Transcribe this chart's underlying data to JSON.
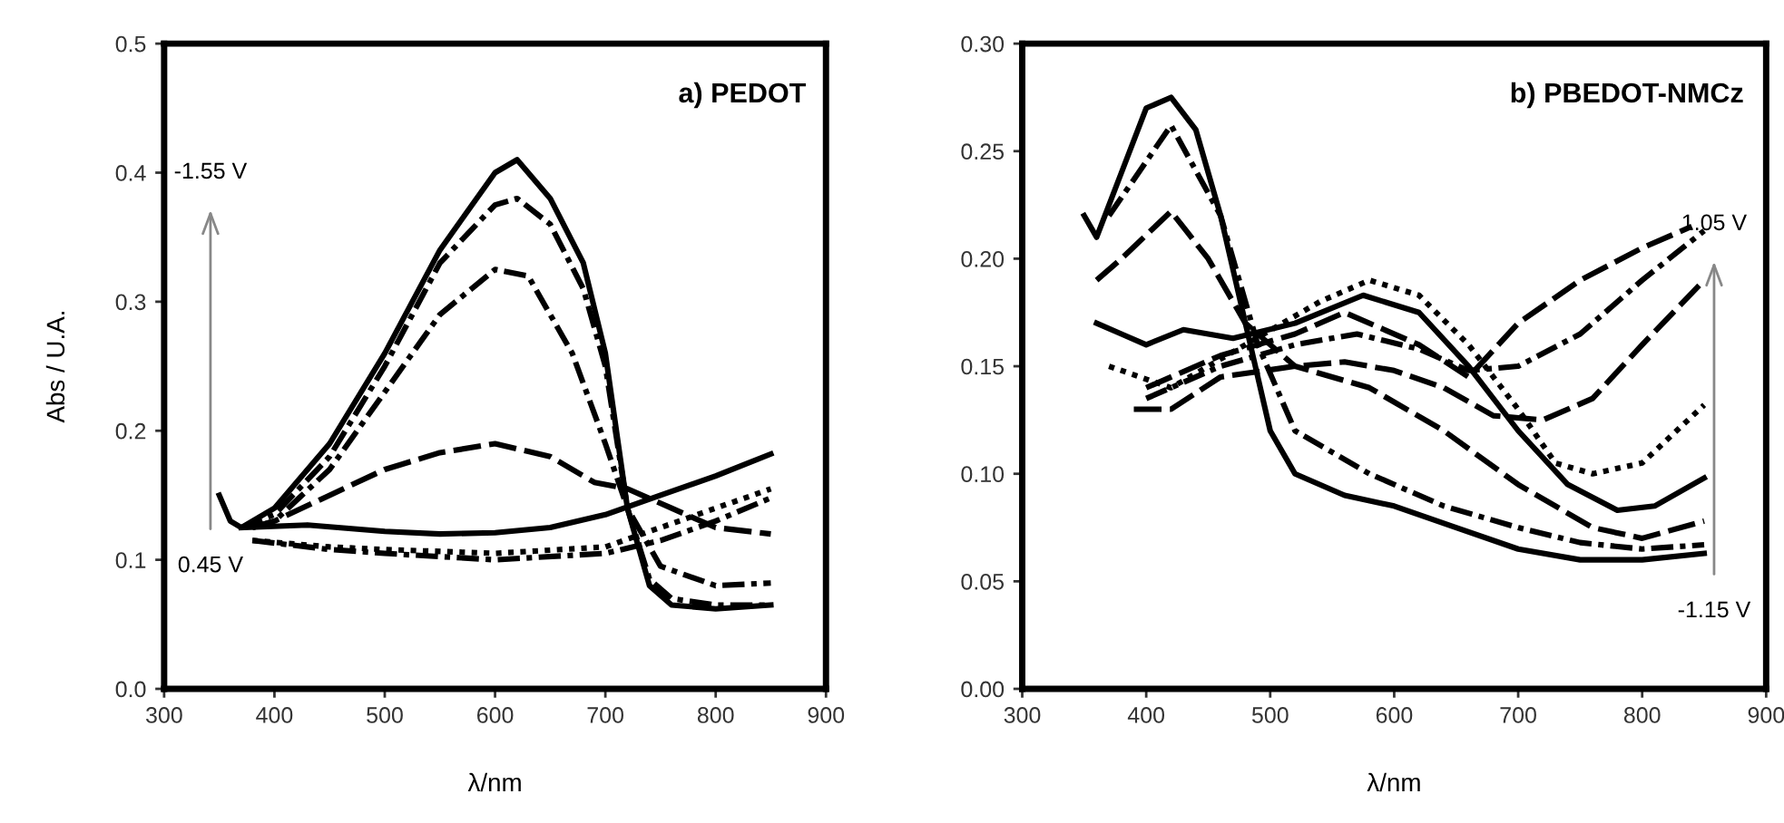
{
  "chart_data": [
    {
      "type": "line",
      "title": "a) PEDOT",
      "xlabel": "λ/nm",
      "ylabel": "Abs / U.A.",
      "xlim": [
        300,
        900
      ],
      "xticks": [
        300,
        400,
        500,
        600,
        700,
        800,
        900
      ],
      "ylim": [
        0,
        0.5
      ],
      "yticks": [
        {
          "value": 0,
          "label": "0.0"
        },
        0.1,
        0.2,
        0.3,
        0.4,
        0.5
      ],
      "grid": false,
      "legend": false,
      "marker": "none",
      "annotations": [
        "-1.55 V",
        "0.45 V"
      ],
      "series": [
        {
          "color": "#000000",
          "line_style": "solid",
          "x": [
            350,
            360,
            370,
            400,
            450,
            500,
            550,
            600,
            620,
            650,
            680,
            700,
            720,
            740,
            760,
            800,
            850
          ],
          "values": [
            0.15,
            0.13,
            0.125,
            0.14,
            0.19,
            0.26,
            0.34,
            0.4,
            0.41,
            0.38,
            0.33,
            0.26,
            0.14,
            0.08,
            0.065,
            0.062,
            0.065
          ]
        },
        {
          "color": "#000000",
          "line_style": "dashdot",
          "x": [
            370,
            400,
            450,
            500,
            550,
            600,
            620,
            650,
            680,
            700,
            720,
            740,
            760,
            800,
            850
          ],
          "values": [
            0.125,
            0.135,
            0.18,
            0.25,
            0.33,
            0.375,
            0.38,
            0.36,
            0.31,
            0.25,
            0.14,
            0.085,
            0.07,
            0.065,
            0.065
          ]
        },
        {
          "color": "#000000",
          "line_style": "dashdot",
          "x": [
            380,
            400,
            450,
            500,
            550,
            600,
            630,
            670,
            700,
            720,
            750,
            800,
            850
          ],
          "values": [
            0.125,
            0.13,
            0.17,
            0.23,
            0.29,
            0.325,
            0.32,
            0.26,
            0.19,
            0.14,
            0.095,
            0.08,
            0.082
          ]
        },
        {
          "color": "#000000",
          "line_style": "dashed",
          "x": [
            380,
            400,
            450,
            500,
            550,
            600,
            650,
            690,
            720,
            760,
            800,
            850
          ],
          "values": [
            0.125,
            0.13,
            0.15,
            0.17,
            0.183,
            0.19,
            0.18,
            0.16,
            0.155,
            0.14,
            0.125,
            0.12
          ]
        },
        {
          "color": "#000000",
          "line_style": "solid",
          "x": [
            370,
            430,
            500,
            550,
            600,
            650,
            700,
            750,
            800,
            850
          ],
          "values": [
            0.125,
            0.127,
            0.122,
            0.12,
            0.121,
            0.125,
            0.135,
            0.15,
            0.165,
            0.182
          ]
        },
        {
          "color": "#000000",
          "line_style": "dotted",
          "x": [
            380,
            450,
            500,
            600,
            700,
            750,
            800,
            850
          ],
          "values": [
            0.115,
            0.11,
            0.108,
            0.105,
            0.11,
            0.125,
            0.14,
            0.155
          ]
        },
        {
          "color": "#000000",
          "line_style": "dashdot",
          "x": [
            380,
            450,
            500,
            600,
            700,
            750,
            800,
            850
          ],
          "values": [
            0.115,
            0.108,
            0.105,
            0.1,
            0.105,
            0.115,
            0.13,
            0.148
          ]
        }
      ]
    },
    {
      "type": "line",
      "title": "b) PBEDOT-NMCz",
      "xlabel": "λ/nm",
      "xlim": [
        300,
        900
      ],
      "xticks": [
        300,
        400,
        500,
        600,
        700,
        800,
        900
      ],
      "ylim": [
        0,
        0.3
      ],
      "yticks": [
        {
          "value": 0,
          "label": "0.00"
        },
        {
          "value": 0.05,
          "label": "0.05"
        },
        {
          "value": 0.1,
          "label": "0.10"
        },
        {
          "value": 0.15,
          "label": "0.15"
        },
        {
          "value": 0.2,
          "label": "0.20"
        },
        {
          "value": 0.25,
          "label": "0.25"
        },
        {
          "value": 0.3,
          "label": "0.30"
        }
      ],
      "grid": false,
      "legend": false,
      "marker": "none",
      "annotations": [
        "1.05 V",
        "-1.15 V"
      ],
      "series": [
        {
          "color": "#000000",
          "line_style": "solid",
          "x": [
            350,
            360,
            380,
            400,
            420,
            440,
            460,
            480,
            500,
            520,
            560,
            600,
            650,
            700,
            750,
            800,
            850
          ],
          "values": [
            0.22,
            0.21,
            0.24,
            0.27,
            0.275,
            0.26,
            0.22,
            0.17,
            0.12,
            0.1,
            0.09,
            0.085,
            0.075,
            0.065,
            0.06,
            0.06,
            0.063
          ]
        },
        {
          "color": "#000000",
          "line_style": "dashdot",
          "x": [
            370,
            420,
            460,
            490,
            520,
            580,
            640,
            700,
            750,
            800,
            850
          ],
          "values": [
            0.22,
            0.262,
            0.22,
            0.16,
            0.12,
            0.1,
            0.085,
            0.075,
            0.068,
            0.065,
            0.067
          ]
        },
        {
          "color": "#000000",
          "line_style": "dashed",
          "x": [
            360,
            380,
            420,
            450,
            480,
            520,
            580,
            640,
            700,
            760,
            800,
            850
          ],
          "values": [
            0.19,
            0.2,
            0.222,
            0.2,
            0.17,
            0.15,
            0.14,
            0.12,
            0.095,
            0.075,
            0.07,
            0.078
          ]
        },
        {
          "color": "#000000",
          "line_style": "solid",
          "x": [
            360,
            380,
            400,
            430,
            470,
            520,
            575,
            620,
            660,
            700,
            740,
            780,
            810,
            850
          ],
          "values": [
            0.17,
            0.165,
            0.16,
            0.167,
            0.163,
            0.17,
            0.183,
            0.175,
            0.15,
            0.12,
            0.095,
            0.083,
            0.085,
            0.098
          ]
        },
        {
          "color": "#000000",
          "line_style": "dotted",
          "x": [
            370,
            420,
            480,
            540,
            580,
            620,
            660,
            700,
            730,
            760,
            800,
            850
          ],
          "values": [
            0.15,
            0.14,
            0.16,
            0.18,
            0.19,
            0.183,
            0.16,
            0.13,
            0.105,
            0.1,
            0.105,
            0.132
          ]
        },
        {
          "color": "#000000",
          "line_style": "dashed",
          "x": [
            390,
            420,
            460,
            520,
            560,
            600,
            640,
            680,
            720,
            760,
            800,
            850
          ],
          "values": [
            0.13,
            0.13,
            0.145,
            0.15,
            0.152,
            0.148,
            0.14,
            0.127,
            0.125,
            0.135,
            0.16,
            0.19
          ]
        },
        {
          "color": "#000000",
          "line_style": "dashdot",
          "x": [
            400,
            460,
            520,
            570,
            620,
            660,
            700,
            750,
            800,
            850
          ],
          "values": [
            0.135,
            0.15,
            0.16,
            0.165,
            0.158,
            0.148,
            0.15,
            0.165,
            0.19,
            0.213
          ]
        },
        {
          "color": "#000000",
          "line_style": "dashed",
          "x": [
            400,
            460,
            520,
            560,
            620,
            660,
            700,
            750,
            800,
            840
          ],
          "values": [
            0.14,
            0.155,
            0.165,
            0.175,
            0.16,
            0.145,
            0.17,
            0.19,
            0.205,
            0.215
          ]
        }
      ]
    }
  ]
}
